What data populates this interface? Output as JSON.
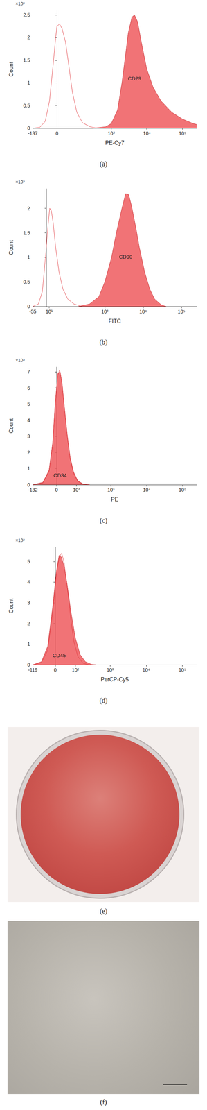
{
  "chart_data": [
    {
      "type": "line",
      "caption": "(a)",
      "x_label": "PE-Cy7",
      "y_label": "Count",
      "y_unit": "×10³",
      "xlim": [
        -137,
        250000
      ],
      "xticks": [
        -137,
        0,
        {
          "value": 1000,
          "label": "10³"
        },
        {
          "value": 10000,
          "label": "10⁴"
        },
        {
          "value": 100000,
          "label": "10⁵"
        }
      ],
      "ylim": [
        0,
        2.6
      ],
      "yticks": [
        0,
        0.5,
        1,
        1.5,
        2,
        2.5
      ],
      "grid": false,
      "series": [
        {
          "type": "line",
          "color": "#e0393e",
          "x": [
            -137,
            -80,
            -50,
            -30,
            -15,
            -5,
            0,
            10,
            20,
            35,
            50,
            70,
            100,
            150,
            250,
            400
          ],
          "values": [
            0,
            0.02,
            0.15,
            0.6,
            1.4,
            2.0,
            2.25,
            2.3,
            2.2,
            1.9,
            1.4,
            0.8,
            0.35,
            0.12,
            0.03,
            0
          ]
        },
        {
          "name": "CD29",
          "type": "area",
          "color": "#ef5b5e",
          "x": [
            300,
            700,
            1000,
            1500,
            2000,
            2500,
            3000,
            3800,
            4500,
            5500,
            7000,
            10000,
            15000,
            25000,
            50000,
            100000,
            200000,
            250000
          ],
          "values": [
            0,
            0.03,
            0.1,
            0.4,
            1.0,
            1.6,
            2.1,
            2.45,
            2.5,
            2.35,
            1.9,
            1.3,
            0.9,
            0.6,
            0.35,
            0.2,
            0.1,
            0.08
          ]
        }
      ]
    },
    {
      "type": "line",
      "caption": "(b)",
      "x_label": "FITC",
      "y_label": "Count",
      "y_unit": "×10³",
      "xlim": [
        -55,
        250000
      ],
      "xticks": [
        -55,
        {
          "value": 10,
          "label": "10¹"
        },
        {
          "value": 1000,
          "label": "10³"
        },
        {
          "value": 10000,
          "label": "10⁴"
        },
        {
          "value": 100000,
          "label": "10⁵"
        }
      ],
      "ylim": [
        0,
        2.4
      ],
      "yticks": [
        0,
        0.5,
        1,
        1.5,
        2
      ],
      "grid": false,
      "series": [
        {
          "type": "line",
          "color": "#e0393e",
          "x": [
            -55,
            -30,
            -15,
            -5,
            5,
            12,
            18,
            25,
            35,
            50,
            70,
            100,
            150,
            250
          ],
          "values": [
            0,
            0.05,
            0.3,
            0.9,
            1.6,
            2.0,
            1.95,
            1.7,
            1.2,
            0.7,
            0.35,
            0.15,
            0.05,
            0
          ]
        },
        {
          "name": "CD90",
          "type": "area",
          "color": "#ef5b5e",
          "x": [
            200,
            400,
            700,
            1000,
            1500,
            2000,
            2800,
            3500,
            4200,
            5000,
            6500,
            8000,
            11000,
            15000,
            20000,
            30000,
            40000
          ],
          "values": [
            0,
            0.05,
            0.2,
            0.5,
            1.0,
            1.5,
            2.0,
            2.3,
            2.28,
            2.05,
            1.6,
            1.2,
            0.7,
            0.35,
            0.15,
            0.03,
            0
          ]
        }
      ]
    },
    {
      "type": "line",
      "caption": "(c)",
      "x_label": "PE",
      "y_label": "Count",
      "y_unit": "×10³",
      "xlim": [
        -132,
        250000
      ],
      "xticks": [
        -132,
        0,
        {
          "value": 100,
          "label": "10²"
        },
        {
          "value": 1000,
          "label": "10³"
        },
        {
          "value": 10000,
          "label": "10⁴"
        },
        {
          "value": 100000,
          "label": "10⁵"
        }
      ],
      "ylim": [
        0,
        7.3
      ],
      "yticks": [
        0,
        1,
        2,
        3,
        4,
        5,
        6,
        7
      ],
      "grid": false,
      "series": [
        {
          "type": "line",
          "color": "#e0393e",
          "x": [
            -132,
            -60,
            -30,
            -15,
            -5,
            5,
            12,
            20,
            30,
            45,
            60,
            80,
            110,
            160,
            250
          ],
          "values": [
            0,
            0.1,
            0.8,
            2.5,
            5.0,
            6.8,
            7.1,
            6.5,
            5.0,
            3.0,
            1.6,
            0.7,
            0.2,
            0.03,
            0
          ]
        },
        {
          "name": "CD34",
          "type": "area",
          "color": "#ef5b5e",
          "x": [
            -132,
            -60,
            -30,
            -15,
            -5,
            5,
            14,
            22,
            32,
            45,
            60,
            80,
            110,
            160,
            250
          ],
          "values": [
            0,
            0.15,
            0.9,
            2.6,
            5.1,
            6.9,
            7.0,
            6.3,
            4.8,
            3.1,
            1.7,
            0.8,
            0.25,
            0.05,
            0
          ]
        }
      ]
    },
    {
      "type": "line",
      "caption": "(d)",
      "x_label": "PerCP-Cy5",
      "y_label": "Count",
      "y_unit": "×10³",
      "xlim": [
        -119,
        250000
      ],
      "xticks": [
        -119,
        0,
        {
          "value": 100,
          "label": "10²"
        },
        {
          "value": 1000,
          "label": "10³"
        },
        {
          "value": 10000,
          "label": "10⁴"
        },
        {
          "value": 100000,
          "label": "10⁵"
        }
      ],
      "ylim": [
        0,
        5.7
      ],
      "yticks": [
        0,
        1,
        2,
        3,
        4,
        5
      ],
      "grid": false,
      "series": [
        {
          "type": "line",
          "color": "#e0393e",
          "x": [
            -119,
            -60,
            -30,
            -10,
            5,
            15,
            25,
            35,
            50,
            70,
            90,
            120,
            170,
            250
          ],
          "values": [
            0,
            0.1,
            0.7,
            2.5,
            4.4,
            5.2,
            5.4,
            5.0,
            3.8,
            2.2,
            1.1,
            0.4,
            0.08,
            0
          ]
        },
        {
          "name": "CD45",
          "type": "area",
          "color": "#ef5b5e",
          "x": [
            -119,
            -60,
            -30,
            -10,
            5,
            15,
            25,
            35,
            50,
            70,
            100,
            140,
            200,
            300,
            400
          ],
          "values": [
            0,
            0.15,
            0.9,
            2.8,
            4.6,
            5.3,
            5.2,
            4.8,
            3.9,
            2.6,
            1.3,
            0.5,
            0.15,
            0.02,
            0
          ]
        }
      ]
    }
  ],
  "images": [
    {
      "caption": "(e)"
    },
    {
      "caption": "(f)"
    }
  ]
}
